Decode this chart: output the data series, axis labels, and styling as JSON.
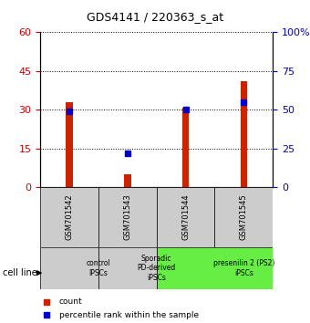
{
  "title": "GDS4141 / 220363_s_at",
  "samples": [
    "GSM701542",
    "GSM701543",
    "GSM701544",
    "GSM701545"
  ],
  "count_values": [
    33,
    5,
    31,
    41
  ],
  "percentile_values": [
    49,
    22,
    50,
    55
  ],
  "left_yaxis": {
    "min": 0,
    "max": 60,
    "ticks": [
      0,
      15,
      30,
      45,
      60
    ],
    "color": "#cc0000"
  },
  "right_yaxis": {
    "min": 0,
    "max": 100,
    "ticks": [
      0,
      25,
      50,
      75,
      100
    ],
    "color": "#0000cc"
  },
  "right_tick_labels": [
    "0",
    "25",
    "50",
    "75",
    "100%"
  ],
  "bar_color": "#cc2200",
  "dot_color": "#0000cc",
  "groups": [
    {
      "label": "control\nIPSCs",
      "start": 0,
      "end": 1,
      "color": "#cccccc"
    },
    {
      "label": "Sporadic\nPD-derived\niPSCs",
      "start": 1,
      "end": 2,
      "color": "#cccccc"
    },
    {
      "label": "presenilin 2 (PS2)\niPSCs",
      "start": 2,
      "end": 4,
      "color": "#66ee44"
    }
  ],
  "cell_line_label": "cell line",
  "legend_count_label": "count",
  "legend_percentile_label": "percentile rank within the sample",
  "bar_width": 0.12,
  "dot_size": 18
}
